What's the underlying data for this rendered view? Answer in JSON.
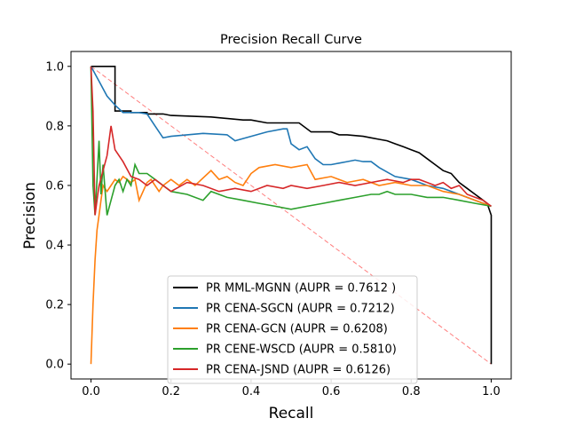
{
  "chart_data": {
    "type": "line",
    "title": "Precision Recall Curve",
    "xlabel": "Recall",
    "ylabel": "Precision",
    "xlim": [
      -0.05,
      1.05
    ],
    "ylim": [
      -0.05,
      1.05
    ],
    "xticks": [
      0.0,
      0.2,
      0.4,
      0.6,
      0.8,
      1.0
    ],
    "xtick_labels": [
      "0.0",
      "0.2",
      "0.4",
      "0.6",
      "0.8",
      "1.0"
    ],
    "yticks": [
      0.0,
      0.2,
      0.4,
      0.6,
      0.8,
      1.0
    ],
    "ytick_labels": [
      "0.0",
      "0.2",
      "0.4",
      "0.6",
      "0.8",
      "1.0"
    ],
    "grid": false,
    "legend_position": "bottom-center",
    "baseline": {
      "x": [
        0.0,
        1.0
      ],
      "y": [
        1.0,
        0.0
      ],
      "color": "#ff7f7f",
      "style": "dashed"
    },
    "series": [
      {
        "name": "PR MML-MGNN (AUPR = 0.7612 )",
        "color": "#000000",
        "x": [
          0.0,
          0.06,
          0.06,
          0.1,
          0.1,
          0.14,
          0.14,
          0.18,
          0.2,
          0.3,
          0.38,
          0.4,
          0.44,
          0.5,
          0.52,
          0.55,
          0.56,
          0.6,
          0.62,
          0.64,
          0.68,
          0.7,
          0.72,
          0.74,
          0.76,
          0.78,
          0.8,
          0.82,
          0.84,
          0.86,
          0.88,
          0.9,
          0.92,
          0.94,
          0.96,
          0.98,
          0.99,
          1.0,
          1.0
        ],
        "y": [
          1.0,
          1.0,
          0.85,
          0.85,
          0.845,
          0.845,
          0.84,
          0.84,
          0.835,
          0.83,
          0.82,
          0.82,
          0.81,
          0.81,
          0.81,
          0.78,
          0.78,
          0.78,
          0.77,
          0.77,
          0.765,
          0.76,
          0.755,
          0.75,
          0.74,
          0.73,
          0.72,
          0.71,
          0.69,
          0.67,
          0.65,
          0.64,
          0.61,
          0.59,
          0.57,
          0.55,
          0.54,
          0.5,
          0.0
        ]
      },
      {
        "name": "PR CENA-SGCN (AUPR = 0.7212)",
        "color": "#1f77b4",
        "x": [
          0.0,
          0.02,
          0.04,
          0.06,
          0.08,
          0.12,
          0.14,
          0.16,
          0.18,
          0.2,
          0.24,
          0.28,
          0.34,
          0.36,
          0.4,
          0.44,
          0.48,
          0.49,
          0.5,
          0.52,
          0.54,
          0.56,
          0.58,
          0.6,
          0.62,
          0.64,
          0.66,
          0.68,
          0.7,
          0.72,
          0.76,
          0.8,
          0.84,
          0.88,
          0.92,
          0.96,
          1.0
        ],
        "y": [
          1.0,
          0.95,
          0.9,
          0.87,
          0.845,
          0.845,
          0.84,
          0.8,
          0.76,
          0.765,
          0.77,
          0.775,
          0.77,
          0.75,
          0.765,
          0.78,
          0.79,
          0.79,
          0.74,
          0.72,
          0.73,
          0.69,
          0.67,
          0.67,
          0.675,
          0.68,
          0.685,
          0.68,
          0.68,
          0.66,
          0.63,
          0.62,
          0.6,
          0.59,
          0.57,
          0.55,
          0.53
        ]
      },
      {
        "name": "PR CENA-GCN (AUPR = 0.6208)",
        "color": "#ff7f0e",
        "x": [
          0.0,
          0.005,
          0.01,
          0.015,
          0.02,
          0.025,
          0.03,
          0.04,
          0.05,
          0.06,
          0.07,
          0.08,
          0.09,
          0.1,
          0.11,
          0.12,
          0.13,
          0.14,
          0.15,
          0.16,
          0.17,
          0.18,
          0.2,
          0.22,
          0.24,
          0.26,
          0.3,
          0.32,
          0.34,
          0.36,
          0.38,
          0.4,
          0.42,
          0.46,
          0.5,
          0.54,
          0.56,
          0.6,
          0.64,
          0.68,
          0.72,
          0.76,
          0.8,
          0.84,
          0.88,
          0.92,
          0.96,
          1.0
        ],
        "y": [
          0.0,
          0.2,
          0.35,
          0.45,
          0.5,
          0.55,
          0.6,
          0.58,
          0.6,
          0.62,
          0.61,
          0.63,
          0.62,
          0.61,
          0.62,
          0.55,
          0.58,
          0.61,
          0.62,
          0.6,
          0.58,
          0.6,
          0.62,
          0.6,
          0.62,
          0.6,
          0.65,
          0.62,
          0.63,
          0.61,
          0.6,
          0.64,
          0.66,
          0.67,
          0.66,
          0.67,
          0.62,
          0.63,
          0.61,
          0.62,
          0.6,
          0.61,
          0.6,
          0.6,
          0.58,
          0.57,
          0.55,
          0.53
        ]
      },
      {
        "name": "PR CENE-WSCD (AUPR = 0.5810)",
        "color": "#2ca02c",
        "x": [
          0.0,
          0.005,
          0.01,
          0.015,
          0.02,
          0.025,
          0.03,
          0.04,
          0.05,
          0.06,
          0.07,
          0.08,
          0.09,
          0.1,
          0.11,
          0.12,
          0.14,
          0.16,
          0.18,
          0.2,
          0.24,
          0.28,
          0.3,
          0.34,
          0.38,
          0.42,
          0.46,
          0.5,
          0.54,
          0.58,
          0.62,
          0.66,
          0.7,
          0.72,
          0.74,
          0.76,
          0.8,
          0.84,
          0.88,
          0.92,
          0.96,
          1.0
        ],
        "y": [
          1.0,
          0.6,
          0.5,
          0.62,
          0.75,
          0.57,
          0.67,
          0.5,
          0.55,
          0.6,
          0.62,
          0.58,
          0.62,
          0.6,
          0.67,
          0.64,
          0.64,
          0.62,
          0.6,
          0.58,
          0.57,
          0.55,
          0.58,
          0.56,
          0.55,
          0.54,
          0.53,
          0.52,
          0.53,
          0.54,
          0.55,
          0.56,
          0.57,
          0.57,
          0.58,
          0.57,
          0.57,
          0.56,
          0.56,
          0.55,
          0.54,
          0.53
        ]
      },
      {
        "name": "PR CENA-JSND (AUPR = 0.6126)",
        "color": "#d62728",
        "x": [
          0.0,
          0.005,
          0.01,
          0.015,
          0.02,
          0.03,
          0.04,
          0.05,
          0.06,
          0.08,
          0.1,
          0.12,
          0.14,
          0.16,
          0.18,
          0.2,
          0.24,
          0.28,
          0.32,
          0.36,
          0.4,
          0.44,
          0.48,
          0.5,
          0.54,
          0.58,
          0.62,
          0.66,
          0.7,
          0.74,
          0.78,
          0.8,
          0.82,
          0.84,
          0.86,
          0.88,
          0.9,
          0.92,
          0.94,
          0.96,
          0.98,
          1.0
        ],
        "y": [
          1.0,
          0.85,
          0.5,
          0.55,
          0.6,
          0.65,
          0.7,
          0.8,
          0.72,
          0.68,
          0.63,
          0.62,
          0.6,
          0.62,
          0.6,
          0.58,
          0.61,
          0.6,
          0.58,
          0.59,
          0.58,
          0.6,
          0.59,
          0.6,
          0.59,
          0.6,
          0.61,
          0.6,
          0.61,
          0.62,
          0.61,
          0.62,
          0.62,
          0.61,
          0.6,
          0.61,
          0.59,
          0.6,
          0.57,
          0.56,
          0.55,
          0.53
        ]
      }
    ]
  }
}
